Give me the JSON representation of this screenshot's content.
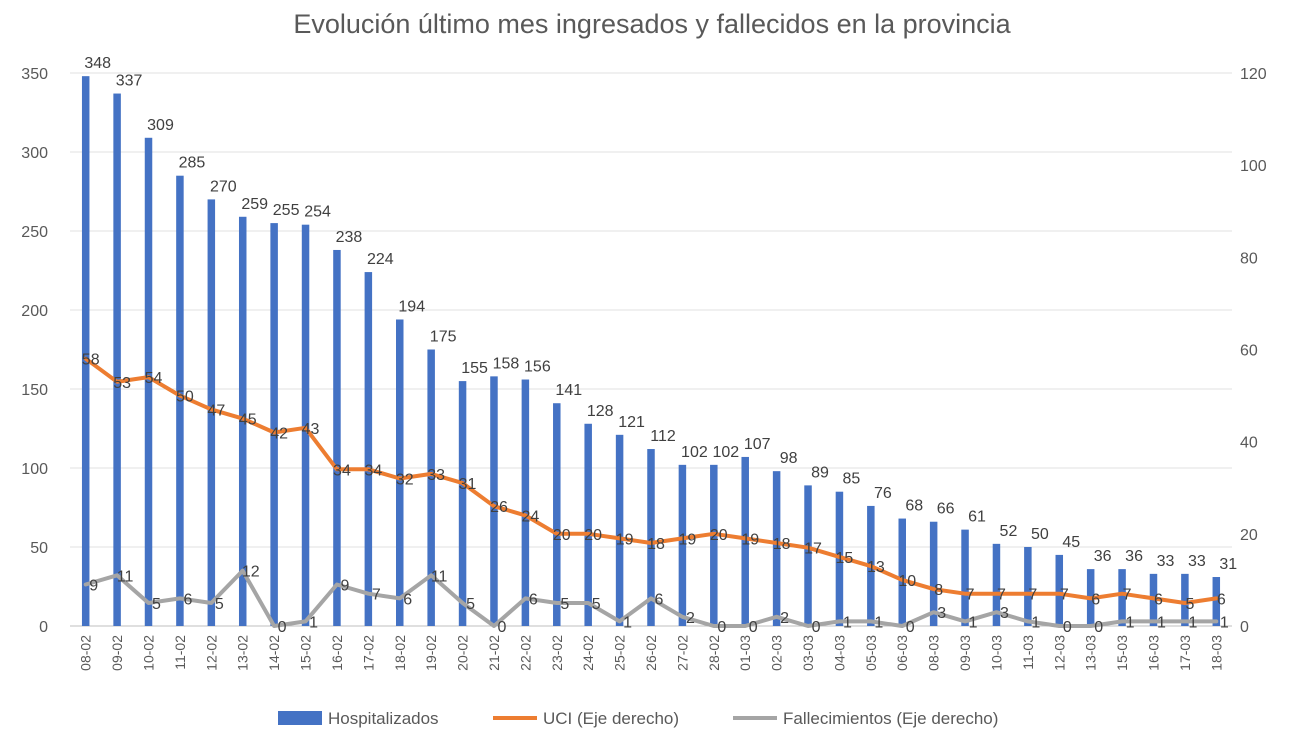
{
  "chart_data": {
    "type": "bar",
    "title": "Evolución último mes ingresados y fallecidos en la provincia",
    "categories": [
      "08-02",
      "09-02",
      "10-02",
      "11-02",
      "12-02",
      "13-02",
      "14-02",
      "15-02",
      "16-02",
      "17-02",
      "18-02",
      "19-02",
      "20-02",
      "21-02",
      "22-02",
      "23-02",
      "24-02",
      "25-02",
      "26-02",
      "27-02",
      "28-02",
      "01-03",
      "02-03",
      "03-03",
      "04-03",
      "05-03",
      "06-03",
      "08-03",
      "09-03",
      "10-03",
      "11-03",
      "12-03",
      "13-03",
      "15-03",
      "16-03",
      "17-03",
      "18-03"
    ],
    "y_left": {
      "min": 0,
      "max": 350,
      "ticks": [
        "0",
        "50",
        "100",
        "150",
        "200",
        "250",
        "300",
        "350"
      ]
    },
    "y_right": {
      "min": 0,
      "max": 120,
      "ticks": [
        "0",
        "20",
        "40",
        "60",
        "80",
        "100",
        "120"
      ]
    },
    "series": [
      {
        "name": "Hospitalizados",
        "kind": "bar",
        "axis": "left",
        "color": "#4472C4",
        "values": [
          348,
          337,
          309,
          285,
          270,
          259,
          255,
          254,
          238,
          224,
          194,
          175,
          155,
          158,
          156,
          141,
          128,
          121,
          112,
          102,
          102,
          107,
          98,
          89,
          85,
          76,
          68,
          66,
          61,
          52,
          50,
          45,
          36,
          36,
          33,
          33,
          31
        ]
      },
      {
        "name": "UCI (Eje derecho)",
        "kind": "line",
        "axis": "right",
        "color": "#ED7D31",
        "values": [
          58,
          53,
          54,
          50,
          47,
          45,
          42,
          43,
          34,
          34,
          32,
          33,
          31,
          26,
          24,
          20,
          20,
          19,
          18,
          19,
          20,
          19,
          18,
          17,
          15,
          13,
          10,
          8,
          7,
          7,
          7,
          7,
          6,
          7,
          6,
          5,
          6
        ]
      },
      {
        "name": "Fallecimientos (Eje derecho)",
        "kind": "line",
        "axis": "right",
        "color": "#A5A5A5",
        "values": [
          9,
          11,
          5,
          6,
          5,
          12,
          0,
          1,
          9,
          7,
          6,
          11,
          5,
          0,
          6,
          5,
          5,
          1,
          6,
          2,
          0,
          0,
          2,
          0,
          1,
          1,
          0,
          3,
          1,
          3,
          1,
          0,
          0,
          1,
          1,
          1,
          1
        ]
      }
    ],
    "legend_position": "bottom",
    "grid": "horizontal"
  }
}
